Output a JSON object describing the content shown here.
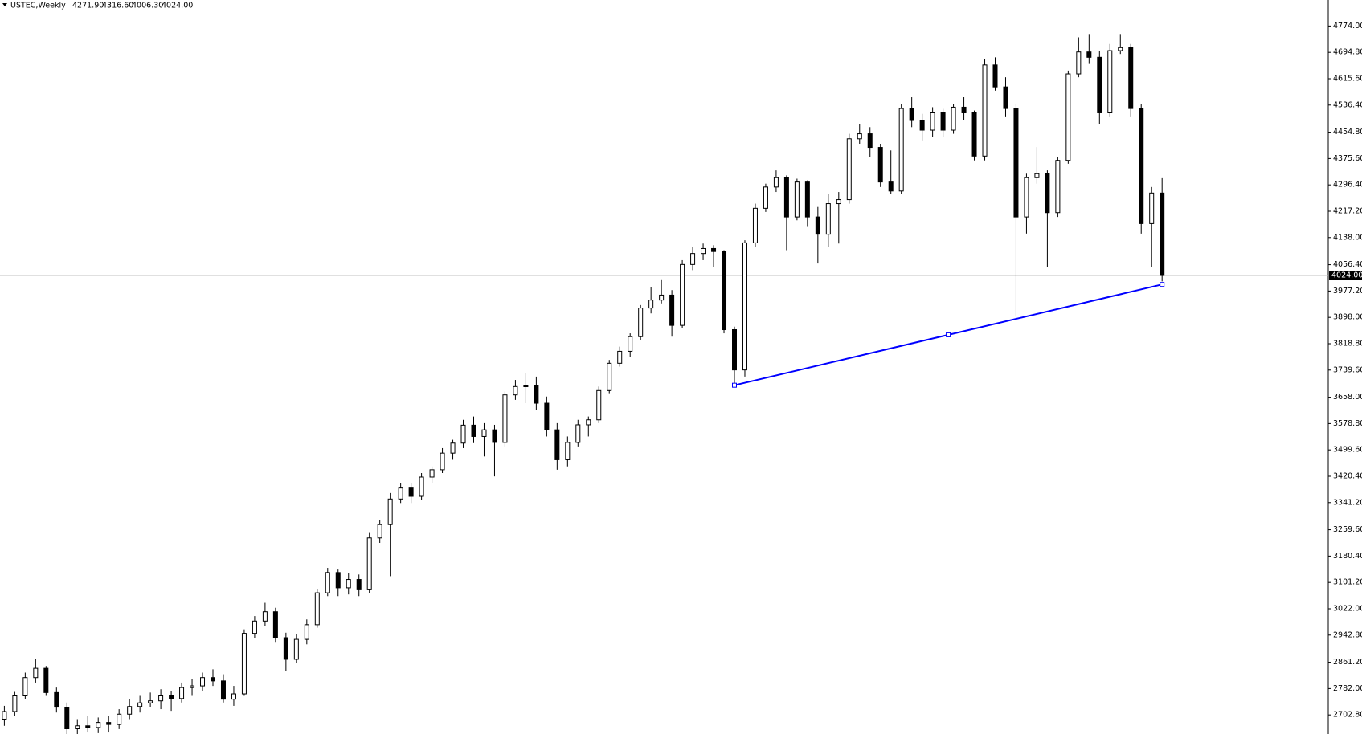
{
  "chart_data": {
    "type": "candlestick",
    "header": {
      "symbol": "USTEC,Weekly",
      "ohlc": [
        "4271.90",
        "4316.60",
        "4006.30",
        "4024.00"
      ]
    },
    "up_color": "#ffffff",
    "down_color": "#000000",
    "outline_color": "#000000",
    "ylim": [
      2645.3,
      4852.2
    ],
    "yticks": [
      {
        "value": 4774,
        "label": "4774.00"
      },
      {
        "value": 4694.8,
        "label": "4694.80"
      },
      {
        "value": 4615.6,
        "label": "4615.60"
      },
      {
        "value": 4536.4,
        "label": "4536.40"
      },
      {
        "value": 4454.8,
        "label": "4454.80"
      },
      {
        "value": 4375.6,
        "label": "4375.60"
      },
      {
        "value": 4296.4,
        "label": "4296.40"
      },
      {
        "value": 4217.2,
        "label": "4217.20"
      },
      {
        "value": 4138,
        "label": "4138.00"
      },
      {
        "value": 4056.4,
        "label": "4056.40"
      },
      {
        "value": 3977.2,
        "label": "3977.20"
      },
      {
        "value": 3898,
        "label": "3898.00"
      },
      {
        "value": 3818.8,
        "label": "3818.80"
      },
      {
        "value": 3739.6,
        "label": "3739.60"
      },
      {
        "value": 3658,
        "label": "3658.00"
      },
      {
        "value": 3578.8,
        "label": "3578.80"
      },
      {
        "value": 3499.6,
        "label": "3499.60"
      },
      {
        "value": 3420.4,
        "label": "3420.40"
      },
      {
        "value": 3341.2,
        "label": "3341.20"
      },
      {
        "value": 3259.6,
        "label": "3259.60"
      },
      {
        "value": 3180.4,
        "label": "3180.40"
      },
      {
        "value": 3101.2,
        "label": "3101.20"
      },
      {
        "value": 3022,
        "label": "3022.00"
      },
      {
        "value": 2942.8,
        "label": "2942.80"
      },
      {
        "value": 2861.2,
        "label": "2861.20"
      },
      {
        "value": 2782,
        "label": "2782.00"
      },
      {
        "value": 2702.8,
        "label": "2702.80"
      }
    ],
    "price_line": {
      "value": 4024,
      "label": "4024.00",
      "color": "#c0c0c0"
    },
    "trendline": {
      "x": [
        70,
        111
      ],
      "y": [
        3694,
        3997
      ],
      "color": "#0000ff"
    },
    "candles": [
      [
        2690,
        2730,
        2670,
        2713
      ],
      [
        2713,
        2772,
        2700,
        2760
      ],
      [
        2760,
        2830,
        2750,
        2815
      ],
      [
        2815,
        2870,
        2800,
        2843
      ],
      [
        2843,
        2850,
        2760,
        2770
      ],
      [
        2770,
        2785,
        2710,
        2726
      ],
      [
        2726,
        2740,
        2640,
        2661
      ],
      [
        2661,
        2690,
        2645,
        2670
      ],
      [
        2670,
        2700,
        2650,
        2665
      ],
      [
        2665,
        2695,
        2648,
        2680
      ],
      [
        2680,
        2700,
        2650,
        2674
      ],
      [
        2674,
        2720,
        2660,
        2705
      ],
      [
        2705,
        2750,
        2690,
        2728
      ],
      [
        2728,
        2760,
        2710,
        2739
      ],
      [
        2739,
        2770,
        2725,
        2745
      ],
      [
        2745,
        2780,
        2720,
        2760
      ],
      [
        2760,
        2775,
        2715,
        2752
      ],
      [
        2752,
        2800,
        2740,
        2785
      ],
      [
        2785,
        2810,
        2760,
        2790
      ],
      [
        2790,
        2830,
        2775,
        2815
      ],
      [
        2815,
        2840,
        2790,
        2805
      ],
      [
        2805,
        2825,
        2740,
        2750
      ],
      [
        2750,
        2790,
        2730,
        2766
      ],
      [
        2766,
        2960,
        2760,
        2948
      ],
      [
        2948,
        3000,
        2935,
        2985
      ],
      [
        2985,
        3040,
        2970,
        3013
      ],
      [
        3013,
        3025,
        2920,
        2935
      ],
      [
        2935,
        2950,
        2835,
        2870
      ],
      [
        2870,
        2945,
        2860,
        2930
      ],
      [
        2930,
        2990,
        2915,
        2974
      ],
      [
        2974,
        3080,
        2965,
        3070
      ],
      [
        3070,
        3145,
        3060,
        3131
      ],
      [
        3131,
        3140,
        3060,
        3085
      ],
      [
        3085,
        3130,
        3065,
        3110
      ],
      [
        3110,
        3125,
        3060,
        3079
      ],
      [
        3079,
        3250,
        3070,
        3235
      ],
      [
        3235,
        3290,
        3220,
        3275
      ],
      [
        3275,
        3370,
        3120,
        3352
      ],
      [
        3352,
        3400,
        3340,
        3385
      ],
      [
        3385,
        3400,
        3340,
        3360
      ],
      [
        3360,
        3430,
        3350,
        3418
      ],
      [
        3418,
        3450,
        3400,
        3440
      ],
      [
        3440,
        3505,
        3430,
        3490
      ],
      [
        3490,
        3530,
        3470,
        3520
      ],
      [
        3520,
        3590,
        3505,
        3574
      ],
      [
        3574,
        3600,
        3520,
        3540
      ],
      [
        3540,
        3580,
        3480,
        3560
      ],
      [
        3560,
        3575,
        3420,
        3522
      ],
      [
        3522,
        3675,
        3510,
        3665
      ],
      [
        3665,
        3710,
        3650,
        3690
      ],
      [
        3690,
        3730,
        3640,
        3692
      ],
      [
        3692,
        3720,
        3620,
        3640
      ],
      [
        3640,
        3660,
        3540,
        3560
      ],
      [
        3560,
        3580,
        3440,
        3470
      ],
      [
        3470,
        3540,
        3450,
        3522
      ],
      [
        3522,
        3590,
        3510,
        3575
      ],
      [
        3575,
        3600,
        3540,
        3590
      ],
      [
        3590,
        3690,
        3580,
        3678
      ],
      [
        3678,
        3770,
        3670,
        3760
      ],
      [
        3760,
        3810,
        3750,
        3796
      ],
      [
        3796,
        3850,
        3780,
        3840
      ],
      [
        3840,
        3935,
        3830,
        3926
      ],
      [
        3926,
        3990,
        3910,
        3950
      ],
      [
        3950,
        4010,
        3940,
        3965
      ],
      [
        3965,
        3980,
        3840,
        3874
      ],
      [
        3874,
        4070,
        3865,
        4057
      ],
      [
        4057,
        4110,
        4040,
        4090
      ],
      [
        4090,
        4120,
        4070,
        4105
      ],
      [
        4105,
        4115,
        4050,
        4096
      ],
      [
        4096,
        4100,
        3850,
        3861
      ],
      [
        3861,
        3870,
        3694,
        3740
      ],
      [
        3740,
        4130,
        3720,
        4122
      ],
      [
        4122,
        4240,
        4110,
        4226
      ],
      [
        4226,
        4300,
        4215,
        4290
      ],
      [
        4290,
        4340,
        4275,
        4318
      ],
      [
        4318,
        4325,
        4100,
        4200
      ],
      [
        4200,
        4315,
        4190,
        4305
      ],
      [
        4305,
        4310,
        4170,
        4200
      ],
      [
        4200,
        4230,
        4060,
        4148
      ],
      [
        4148,
        4270,
        4110,
        4240
      ],
      [
        4240,
        4275,
        4120,
        4252
      ],
      [
        4252,
        4450,
        4240,
        4435
      ],
      [
        4435,
        4480,
        4420,
        4450
      ],
      [
        4450,
        4470,
        4380,
        4409
      ],
      [
        4409,
        4420,
        4290,
        4305
      ],
      [
        4305,
        4400,
        4270,
        4278
      ],
      [
        4278,
        4540,
        4270,
        4526
      ],
      [
        4526,
        4560,
        4470,
        4490
      ],
      [
        4490,
        4510,
        4430,
        4461
      ],
      [
        4461,
        4530,
        4440,
        4513
      ],
      [
        4513,
        4525,
        4440,
        4461
      ],
      [
        4461,
        4540,
        4450,
        4530
      ],
      [
        4530,
        4560,
        4490,
        4513
      ],
      [
        4513,
        4520,
        4370,
        4383
      ],
      [
        4383,
        4675,
        4370,
        4657
      ],
      [
        4657,
        4680,
        4580,
        4591
      ],
      [
        4591,
        4620,
        4500,
        4526
      ],
      [
        4526,
        4540,
        3900,
        4200
      ],
      [
        4200,
        4330,
        4150,
        4318
      ],
      [
        4318,
        4410,
        4300,
        4330
      ],
      [
        4330,
        4340,
        4050,
        4213
      ],
      [
        4213,
        4380,
        4200,
        4370
      ],
      [
        4370,
        4640,
        4360,
        4630
      ],
      [
        4630,
        4740,
        4620,
        4696
      ],
      [
        4696,
        4750,
        4660,
        4680
      ],
      [
        4680,
        4700,
        4480,
        4513
      ],
      [
        4513,
        4720,
        4500,
        4700
      ],
      [
        4700,
        4750,
        4690,
        4709
      ],
      [
        4709,
        4720,
        4500,
        4526
      ],
      [
        4526,
        4540,
        4150,
        4180
      ],
      [
        4180,
        4290,
        4050,
        4271.9
      ],
      [
        4271.9,
        4316.6,
        4006.3,
        4024
      ]
    ]
  }
}
